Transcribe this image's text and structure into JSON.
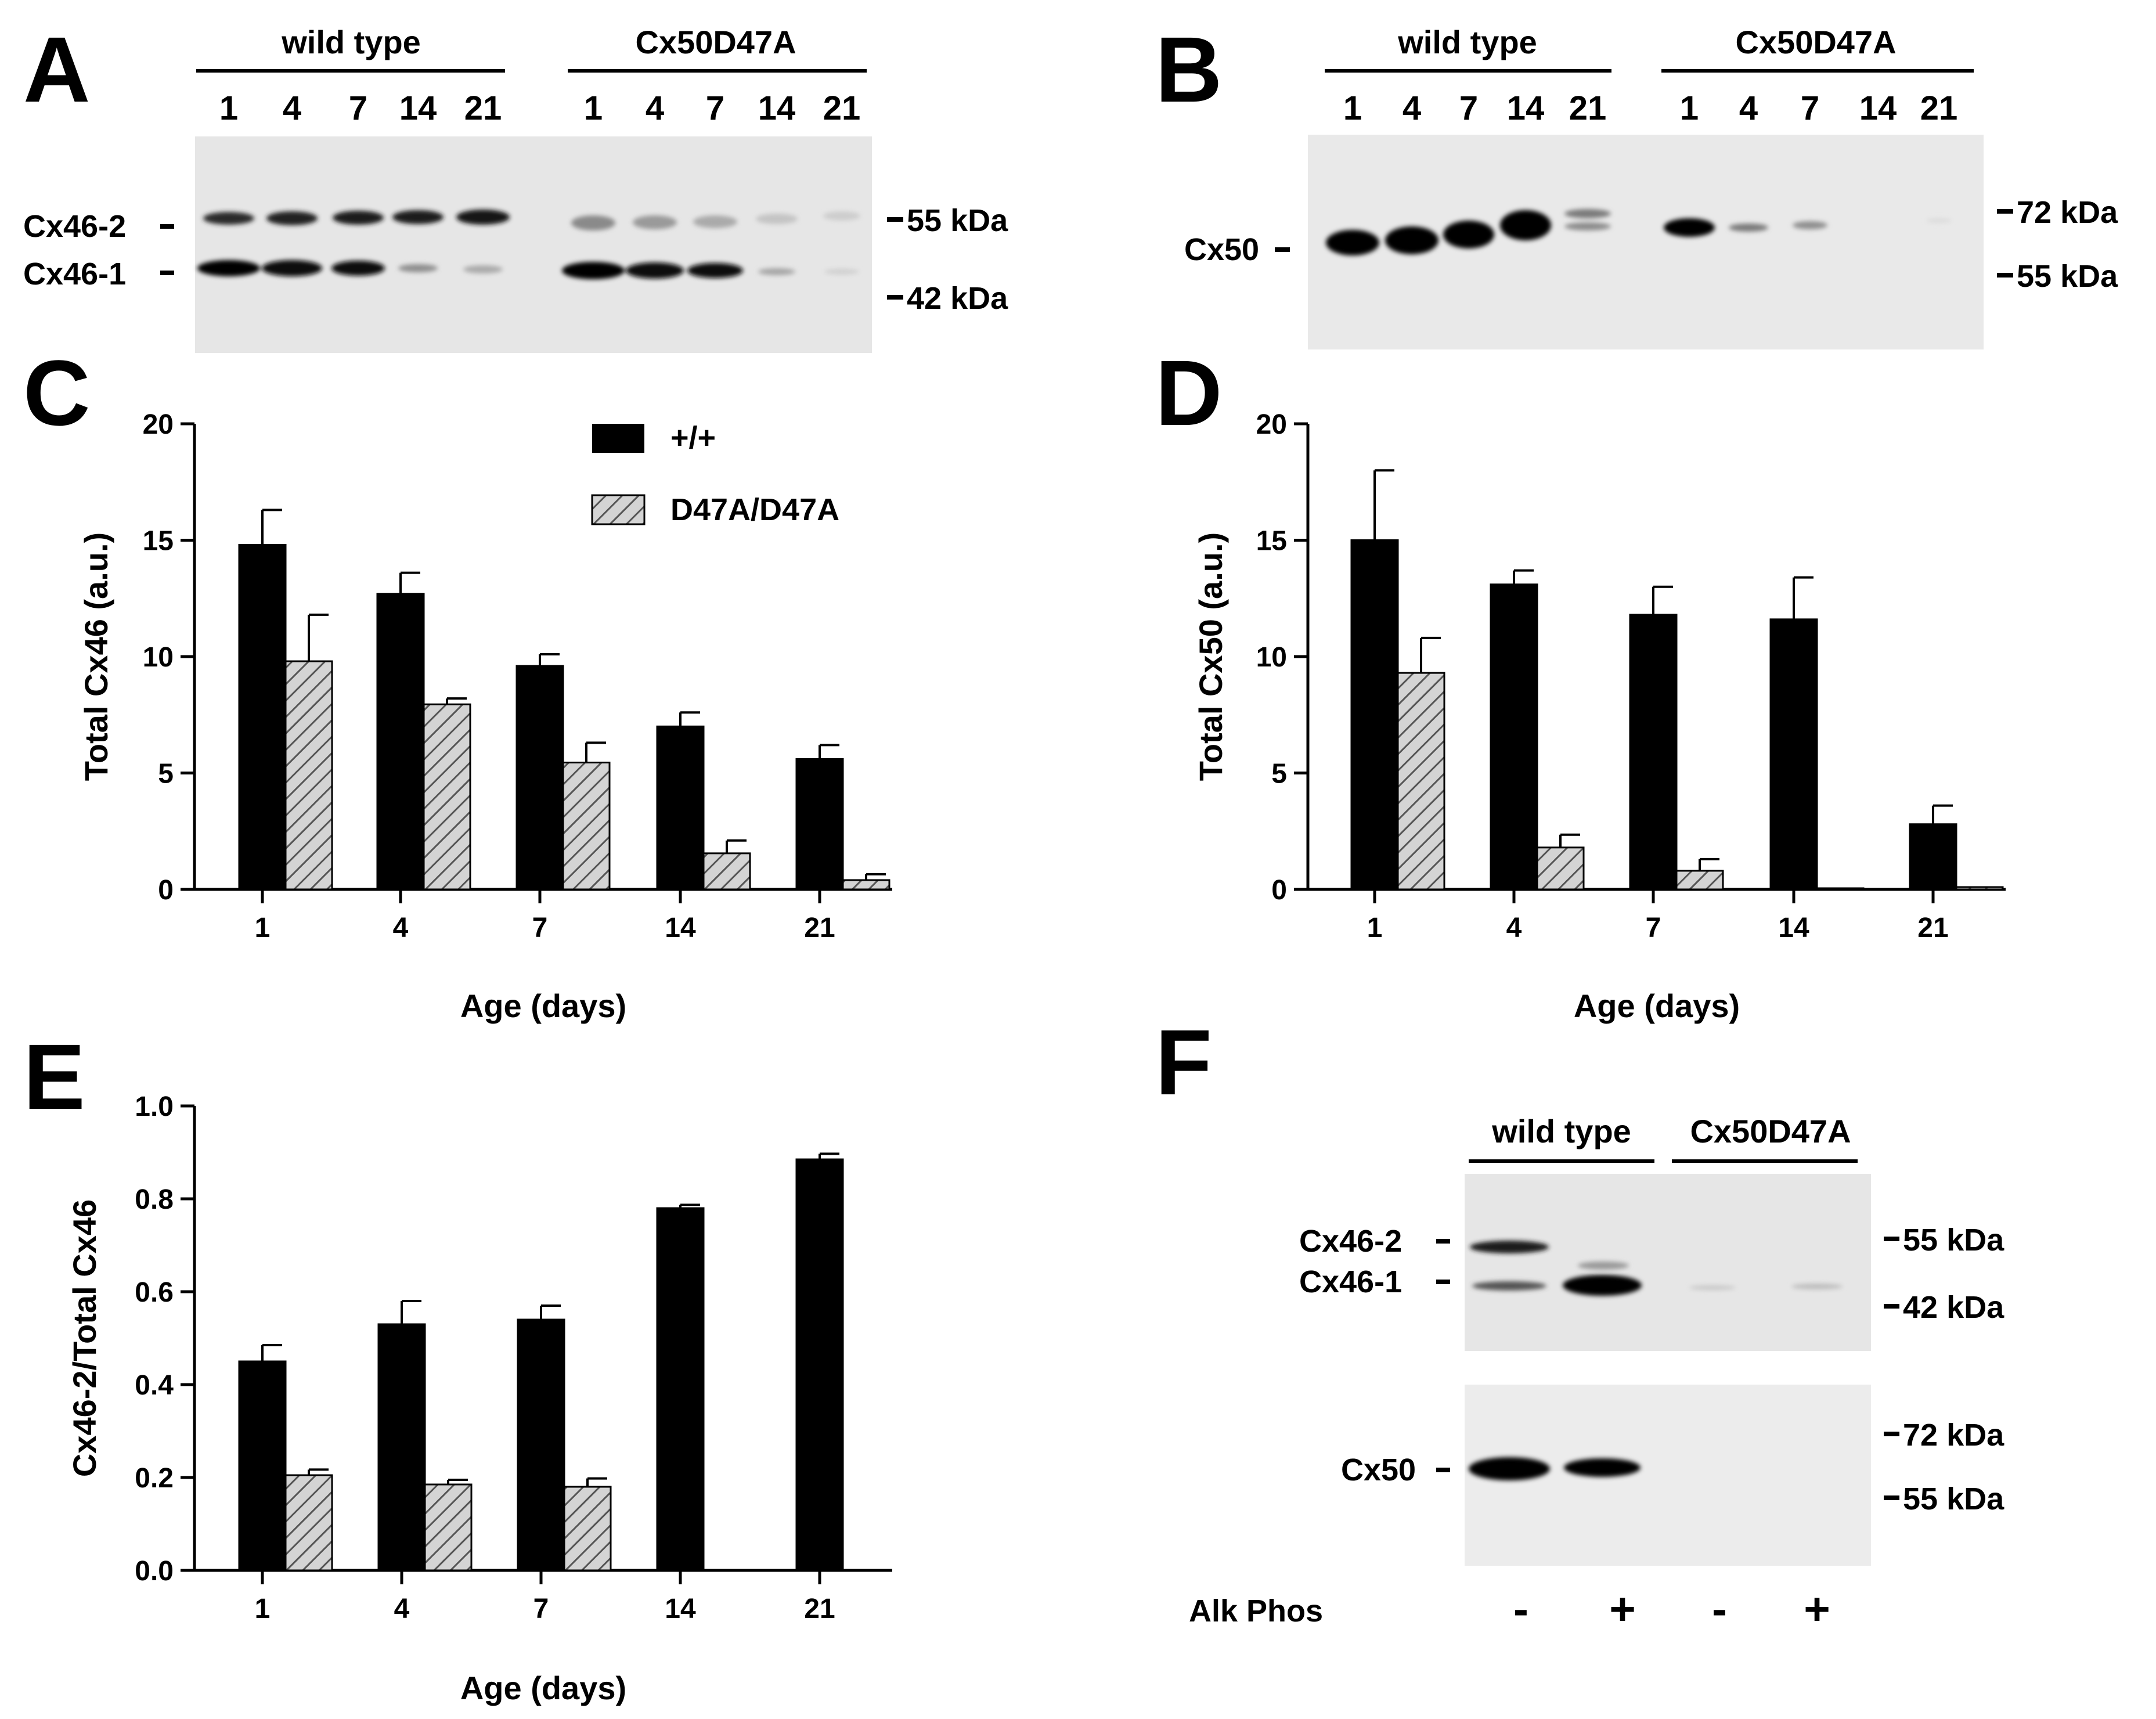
{
  "figure": {
    "panel_labels": [
      "A",
      "B",
      "C",
      "D",
      "E",
      "F"
    ],
    "colors": {
      "wild_type_bar": "#000000",
      "mutant_bar_fill": "#d4d4d4",
      "mutant_hatch": "#555555",
      "blot_background": "#e6e6e6"
    }
  },
  "blot_A": {
    "group_labels": [
      "wild type",
      "Cx50D47A"
    ],
    "lanes": [
      "1",
      "4",
      "7",
      "14",
      "21",
      "1",
      "4",
      "7",
      "14",
      "21"
    ],
    "band_labels": [
      "Cx46-2",
      "Cx46-1"
    ],
    "markers": [
      "55 kDa",
      "42 kDa"
    ]
  },
  "blot_B": {
    "group_labels": [
      "wild type",
      "Cx50D47A"
    ],
    "lanes": [
      "1",
      "4",
      "7",
      "14",
      "21",
      "1",
      "4",
      "7",
      "14",
      "21"
    ],
    "band_labels": [
      "Cx50"
    ],
    "markers": [
      "72 kDa",
      "55 kDa"
    ]
  },
  "blot_F": {
    "group_labels": [
      "wild type",
      "Cx50D47A"
    ],
    "upper_band_labels": [
      "Cx46-2",
      "Cx46-1"
    ],
    "upper_markers": [
      "55 kDa",
      "42 kDa"
    ],
    "lower_band_labels": [
      "Cx50"
    ],
    "lower_markers": [
      "72 kDa",
      "55 kDa"
    ],
    "treatment_label": "Alk Phos",
    "treatment_signs": [
      "-",
      "+",
      "-",
      "+"
    ]
  },
  "chart_data": [
    {
      "panel": "C",
      "type": "bar",
      "categories": [
        "1",
        "4",
        "7",
        "14",
        "21"
      ],
      "series": [
        {
          "name": "+/+",
          "values": [
            14.8,
            12.7,
            9.6,
            7.0,
            5.6
          ],
          "errors": [
            1.5,
            0.9,
            0.5,
            0.6,
            0.6
          ]
        },
        {
          "name": "D47A/D47A",
          "values": [
            9.8,
            7.95,
            5.45,
            1.55,
            0.4
          ],
          "errors": [
            2.0,
            0.25,
            0.85,
            0.55,
            0.25
          ]
        }
      ],
      "xlabel": "Age (days)",
      "ylabel": "Total Cx46 (a.u.)",
      "ylim": [
        0,
        20
      ],
      "yticks": [
        "0",
        "5",
        "10",
        "15",
        "20"
      ],
      "legend": [
        "+/+",
        "D47A/D47A"
      ]
    },
    {
      "panel": "D",
      "type": "bar",
      "categories": [
        "1",
        "4",
        "7",
        "14",
        "21"
      ],
      "series": [
        {
          "name": "+/+",
          "values": [
            15.0,
            13.1,
            11.8,
            11.6,
            2.8
          ],
          "errors": [
            3.0,
            0.6,
            1.2,
            1.8,
            0.8
          ]
        },
        {
          "name": "D47A/D47A",
          "values": [
            9.3,
            1.8,
            0.8,
            0.05,
            0.1
          ],
          "errors": [
            1.5,
            0.55,
            0.5,
            0.0,
            0.0
          ]
        }
      ],
      "xlabel": "Age (days)",
      "ylabel": "Total Cx50 (a.u.)",
      "ylim": [
        0,
        20
      ],
      "yticks": [
        "0",
        "5",
        "10",
        "15",
        "20"
      ]
    },
    {
      "panel": "E",
      "type": "bar",
      "categories": [
        "1",
        "4",
        "7",
        "14",
        "21"
      ],
      "series": [
        {
          "name": "+/+",
          "values": [
            0.45,
            0.53,
            0.54,
            0.78,
            0.885
          ],
          "errors": [
            0.035,
            0.05,
            0.03,
            0.007,
            0.012
          ]
        },
        {
          "name": "D47A/D47A",
          "values": [
            0.205,
            0.185,
            0.18,
            null,
            null
          ],
          "errors": [
            0.012,
            0.01,
            0.018,
            null,
            null
          ]
        }
      ],
      "xlabel": "Age (days)",
      "ylabel": "Cx46-2/Total Cx46",
      "ylim": [
        0,
        1.0
      ],
      "yticks": [
        "0.0",
        "0.2",
        "0.4",
        "0.6",
        "0.8",
        "1.0"
      ]
    }
  ]
}
